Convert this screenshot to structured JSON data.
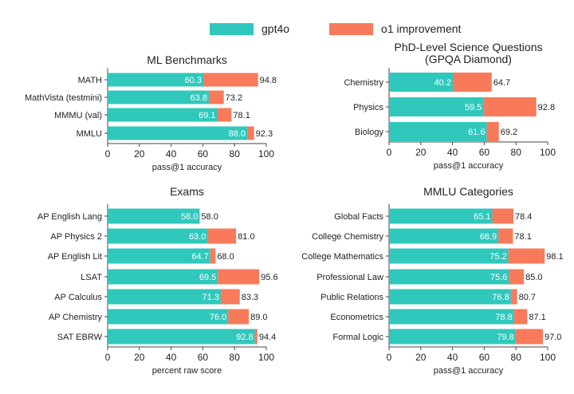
{
  "legend": {
    "gpt4o": "gpt4o",
    "o1": "o1 improvement"
  },
  "colors": {
    "gpt4o": "#30c8bc",
    "o1": "#f87a5a"
  },
  "chart_data": [
    {
      "type": "bar",
      "title": [
        "ML Benchmarks"
      ],
      "xlabel": "pass@1 accuracy",
      "xlim": [
        0,
        100
      ],
      "xticks": [
        0,
        20,
        40,
        60,
        80,
        100
      ],
      "categories": [
        "MATH",
        "MathVista (testmini)",
        "MMMU (val)",
        "MMLU"
      ],
      "series": [
        {
          "name": "gpt4o",
          "values": [
            60.3,
            63.8,
            69.1,
            88.0
          ]
        },
        {
          "name": "o1 improvement",
          "values": [
            94.8,
            73.2,
            78.1,
            92.3
          ]
        }
      ]
    },
    {
      "type": "bar",
      "title": [
        "PhD-Level Science Questions",
        "(GPQA Diamond)"
      ],
      "xlabel": "pass@1 accuracy",
      "xlim": [
        0,
        100
      ],
      "xticks": [
        0,
        20,
        40,
        60,
        80,
        100
      ],
      "categories": [
        "Chemistry",
        "Physics",
        "Biology"
      ],
      "series": [
        {
          "name": "gpt4o",
          "values": [
            40.2,
            59.5,
            61.6
          ]
        },
        {
          "name": "o1 improvement",
          "values": [
            64.7,
            92.8,
            69.2
          ]
        }
      ]
    },
    {
      "type": "bar",
      "title": [
        "Exams"
      ],
      "xlabel": "percent raw score",
      "xlim": [
        0,
        100
      ],
      "xticks": [
        0,
        20,
        40,
        60,
        80,
        100
      ],
      "categories": [
        "AP English Lang",
        "AP Physics 2",
        "AP English Lit",
        "LSAT",
        "AP Calculus",
        "AP Chemistry",
        "SAT EBRW"
      ],
      "series": [
        {
          "name": "gpt4o",
          "values": [
            58.0,
            63.0,
            64.7,
            69.5,
            71.3,
            76.0,
            92.8
          ]
        },
        {
          "name": "o1 improvement",
          "values": [
            58.0,
            81.0,
            68.0,
            95.6,
            83.3,
            89.0,
            94.4
          ]
        }
      ]
    },
    {
      "type": "bar",
      "title": [
        "MMLU Categories"
      ],
      "xlabel": "pass@1 accuracy",
      "xlim": [
        0,
        100
      ],
      "xticks": [
        0,
        20,
        40,
        60,
        80,
        100
      ],
      "categories": [
        "Global Facts",
        "College Chemistry",
        "College Mathematics",
        "Professional Law",
        "Public Relations",
        "Econometrics",
        "Formal Logic"
      ],
      "series": [
        {
          "name": "gpt4o",
          "values": [
            65.1,
            68.9,
            75.2,
            75.6,
            76.8,
            78.8,
            79.8
          ]
        },
        {
          "name": "o1 improvement",
          "values": [
            78.4,
            78.1,
            98.1,
            85.0,
            80.7,
            87.1,
            97.0
          ]
        }
      ]
    }
  ]
}
